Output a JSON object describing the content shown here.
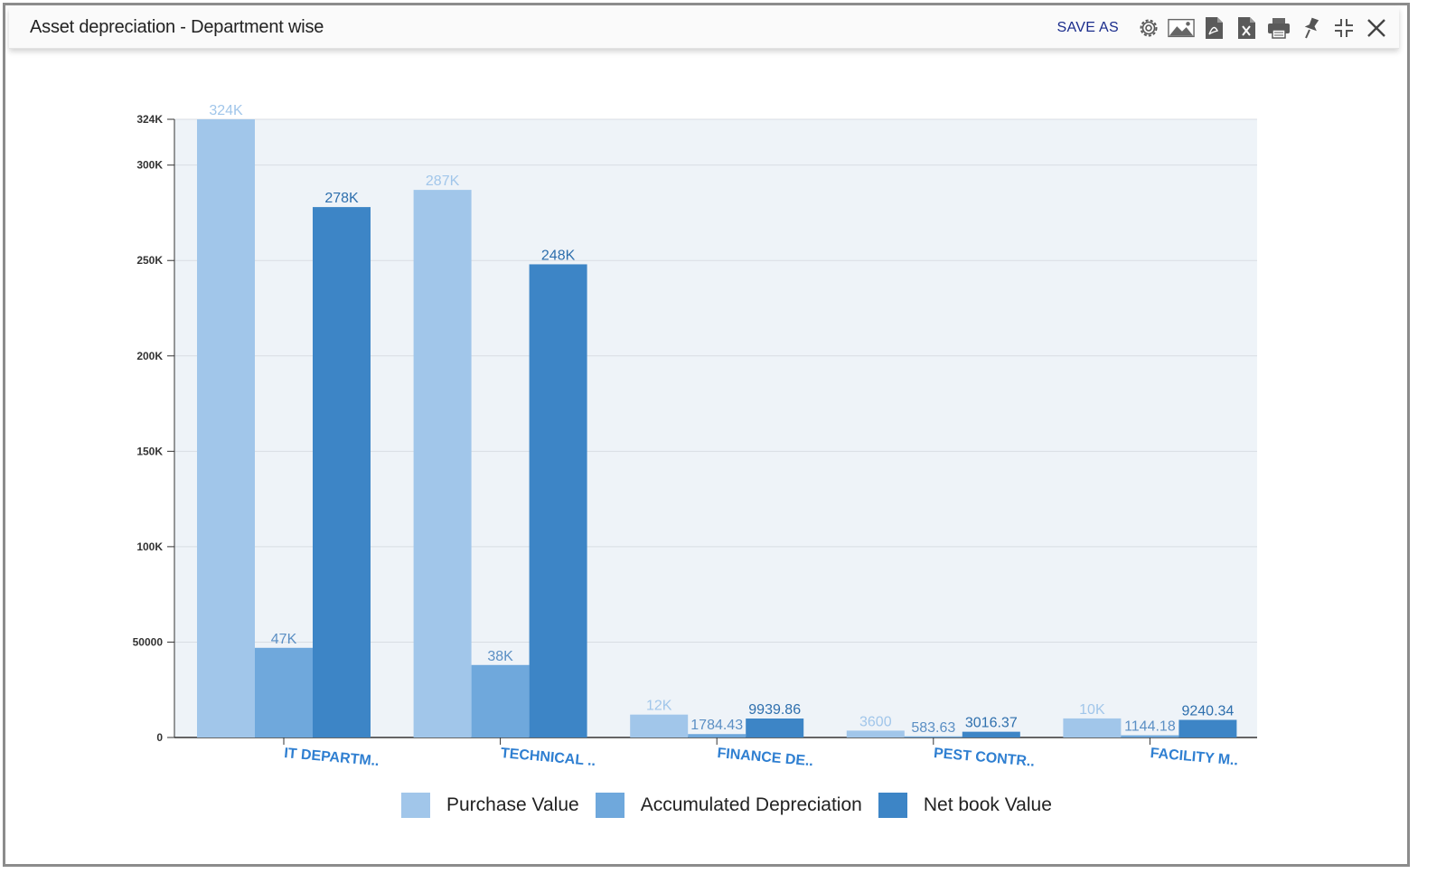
{
  "window": {
    "title": "Asset depreciation - Department wise",
    "save_as_label": "SAVE AS",
    "toolbar_icons": [
      "gear-icon",
      "image-icon",
      "pdf-icon",
      "excel-icon",
      "print-icon",
      "pin-icon",
      "collapse-icon",
      "close-icon"
    ]
  },
  "chart_data": {
    "type": "bar",
    "title": "",
    "xlabel": "",
    "ylabel": "",
    "categories": [
      "IT DEPARTM..",
      "TECHNICAL ..",
      "FINANCE DE..",
      "PEST CONTR..",
      "FACILITY M.."
    ],
    "series": [
      {
        "name": "Purchase Value",
        "color": "#a1c6ea",
        "values": [
          324000,
          287000,
          12000,
          3600,
          10000
        ],
        "labels": [
          "324K",
          "287K",
          "12K",
          "3600",
          "10K"
        ]
      },
      {
        "name": "Accumulated Depreciation",
        "color": "#6fa8dc",
        "values": [
          47000,
          38000,
          1784.43,
          583.63,
          1144.18
        ],
        "labels": [
          "47K",
          "38K",
          "1784.43",
          "583.63",
          "1144.18"
        ]
      },
      {
        "name": "Net book Value",
        "color": "#3d85c6",
        "values": [
          278000,
          248000,
          9939.86,
          3016.37,
          9240.34
        ],
        "labels": [
          "278K",
          "248K",
          "9939.86",
          "3016.37",
          "9240.34"
        ]
      }
    ],
    "ylim": [
      0,
      324000
    ],
    "yticks": [
      0,
      50000,
      100000,
      150000,
      200000,
      250000,
      300000,
      324000
    ],
    "ytick_labels": [
      "0",
      "50000",
      "100K",
      "150K",
      "200K",
      "250K",
      "300K",
      "324K"
    ],
    "grid": true,
    "legend_position": "bottom-center",
    "plot_background": "#eef3f8"
  }
}
